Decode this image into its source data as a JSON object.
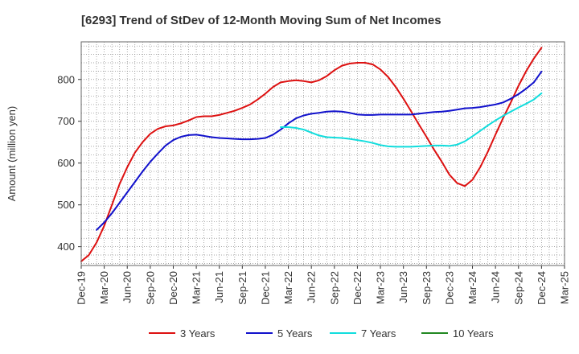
{
  "chart_data": {
    "type": "line",
    "title": "[6293]  Trend of StDev of 12-Month Moving Sum of Net Incomes",
    "ylabel": "Amount (million yen)",
    "xlabel": "",
    "ylim": [
      355,
      890
    ],
    "yticks": [
      400,
      500,
      600,
      700,
      800
    ],
    "x_tick_labels": [
      "Dec-19",
      "Mar-20",
      "Jun-20",
      "Sep-20",
      "Dec-20",
      "Mar-21",
      "Jun-21",
      "Sep-21",
      "Dec-21",
      "Mar-22",
      "Jun-22",
      "Sep-22",
      "Dec-22",
      "Mar-23",
      "Jun-23",
      "Sep-23",
      "Dec-23",
      "Mar-24",
      "Jun-24",
      "Sep-24",
      "Dec-24",
      "Mar-25"
    ],
    "grid": true,
    "legend_position": "bottom",
    "series": [
      {
        "name": "3 Years",
        "color": "#dd1111",
        "points": [
          [
            "2019-12",
            365
          ],
          [
            "2020-01",
            380
          ],
          [
            "2020-02",
            410
          ],
          [
            "2020-03",
            450
          ],
          [
            "2020-04",
            500
          ],
          [
            "2020-05",
            550
          ],
          [
            "2020-06",
            590
          ],
          [
            "2020-07",
            625
          ],
          [
            "2020-08",
            650
          ],
          [
            "2020-09",
            670
          ],
          [
            "2020-10",
            682
          ],
          [
            "2020-11",
            688
          ],
          [
            "2020-12",
            690
          ],
          [
            "2021-01",
            695
          ],
          [
            "2021-02",
            702
          ],
          [
            "2021-03",
            710
          ],
          [
            "2021-04",
            712
          ],
          [
            "2021-05",
            712
          ],
          [
            "2021-06",
            715
          ],
          [
            "2021-07",
            720
          ],
          [
            "2021-08",
            725
          ],
          [
            "2021-09",
            732
          ],
          [
            "2021-10",
            740
          ],
          [
            "2021-11",
            752
          ],
          [
            "2021-12",
            766
          ],
          [
            "2022-01",
            782
          ],
          [
            "2022-02",
            793
          ],
          [
            "2022-03",
            796
          ],
          [
            "2022-04",
            798
          ],
          [
            "2022-05",
            796
          ],
          [
            "2022-06",
            793
          ],
          [
            "2022-07",
            798
          ],
          [
            "2022-08",
            808
          ],
          [
            "2022-09",
            822
          ],
          [
            "2022-10",
            833
          ],
          [
            "2022-11",
            838
          ],
          [
            "2022-12",
            840
          ],
          [
            "2023-01",
            840
          ],
          [
            "2023-02",
            836
          ],
          [
            "2023-03",
            824
          ],
          [
            "2023-04",
            806
          ],
          [
            "2023-05",
            782
          ],
          [
            "2023-06",
            754
          ],
          [
            "2023-07",
            724
          ],
          [
            "2023-08",
            693
          ],
          [
            "2023-09",
            663
          ],
          [
            "2023-10",
            632
          ],
          [
            "2023-11",
            603
          ],
          [
            "2023-12",
            572
          ],
          [
            "2024-01",
            552
          ],
          [
            "2024-02",
            545
          ],
          [
            "2024-03",
            560
          ],
          [
            "2024-04",
            590
          ],
          [
            "2024-05",
            627
          ],
          [
            "2024-06",
            668
          ],
          [
            "2024-07",
            708
          ],
          [
            "2024-08",
            745
          ],
          [
            "2024-09",
            785
          ],
          [
            "2024-10",
            820
          ],
          [
            "2024-11",
            850
          ],
          [
            "2024-12",
            876
          ]
        ]
      },
      {
        "name": "5 Years",
        "color": "#1111cc",
        "points": [
          [
            "2020-02",
            440
          ],
          [
            "2020-03",
            458
          ],
          [
            "2020-04",
            480
          ],
          [
            "2020-05",
            505
          ],
          [
            "2020-06",
            530
          ],
          [
            "2020-07",
            555
          ],
          [
            "2020-08",
            580
          ],
          [
            "2020-09",
            603
          ],
          [
            "2020-10",
            623
          ],
          [
            "2020-11",
            642
          ],
          [
            "2020-12",
            655
          ],
          [
            "2021-01",
            663
          ],
          [
            "2021-02",
            667
          ],
          [
            "2021-03",
            668
          ],
          [
            "2021-04",
            665
          ],
          [
            "2021-05",
            662
          ],
          [
            "2021-06",
            660
          ],
          [
            "2021-07",
            659
          ],
          [
            "2021-08",
            658
          ],
          [
            "2021-09",
            657
          ],
          [
            "2021-10",
            657
          ],
          [
            "2021-11",
            658
          ],
          [
            "2021-12",
            660
          ],
          [
            "2022-01",
            668
          ],
          [
            "2022-02",
            680
          ],
          [
            "2022-03",
            695
          ],
          [
            "2022-04",
            707
          ],
          [
            "2022-05",
            714
          ],
          [
            "2022-06",
            718
          ],
          [
            "2022-07",
            720
          ],
          [
            "2022-08",
            723
          ],
          [
            "2022-09",
            724
          ],
          [
            "2022-10",
            723
          ],
          [
            "2022-11",
            720
          ],
          [
            "2022-12",
            716
          ],
          [
            "2023-01",
            715
          ],
          [
            "2023-02",
            715
          ],
          [
            "2023-03",
            716
          ],
          [
            "2023-04",
            716
          ],
          [
            "2023-05",
            716
          ],
          [
            "2023-06",
            716
          ],
          [
            "2023-07",
            716
          ],
          [
            "2023-08",
            718
          ],
          [
            "2023-09",
            720
          ],
          [
            "2023-10",
            722
          ],
          [
            "2023-11",
            723
          ],
          [
            "2023-12",
            725
          ],
          [
            "2024-01",
            728
          ],
          [
            "2024-02",
            731
          ],
          [
            "2024-03",
            732
          ],
          [
            "2024-04",
            734
          ],
          [
            "2024-05",
            737
          ],
          [
            "2024-06",
            740
          ],
          [
            "2024-07",
            745
          ],
          [
            "2024-08",
            754
          ],
          [
            "2024-09",
            765
          ],
          [
            "2024-10",
            778
          ],
          [
            "2024-11",
            793
          ],
          [
            "2024-12",
            819
          ]
        ]
      },
      {
        "name": "7 Years",
        "color": "#11dddd",
        "points": [
          [
            "2022-02",
            686
          ],
          [
            "2022-03",
            686
          ],
          [
            "2022-04",
            684
          ],
          [
            "2022-05",
            680
          ],
          [
            "2022-06",
            673
          ],
          [
            "2022-07",
            666
          ],
          [
            "2022-08",
            662
          ],
          [
            "2022-09",
            661
          ],
          [
            "2022-10",
            660
          ],
          [
            "2022-11",
            658
          ],
          [
            "2022-12",
            655
          ],
          [
            "2023-01",
            652
          ],
          [
            "2023-02",
            648
          ],
          [
            "2023-03",
            643
          ],
          [
            "2023-04",
            640
          ],
          [
            "2023-05",
            639
          ],
          [
            "2023-06",
            639
          ],
          [
            "2023-07",
            639
          ],
          [
            "2023-08",
            640
          ],
          [
            "2023-09",
            641
          ],
          [
            "2023-10",
            642
          ],
          [
            "2023-11",
            642
          ],
          [
            "2023-12",
            641
          ],
          [
            "2024-01",
            644
          ],
          [
            "2024-02",
            652
          ],
          [
            "2024-03",
            664
          ],
          [
            "2024-04",
            677
          ],
          [
            "2024-05",
            690
          ],
          [
            "2024-06",
            702
          ],
          [
            "2024-07",
            713
          ],
          [
            "2024-08",
            723
          ],
          [
            "2024-09",
            733
          ],
          [
            "2024-10",
            742
          ],
          [
            "2024-11",
            752
          ],
          [
            "2024-12",
            767
          ]
        ]
      },
      {
        "name": "10 Years",
        "color": "#228822",
        "points": []
      }
    ]
  }
}
